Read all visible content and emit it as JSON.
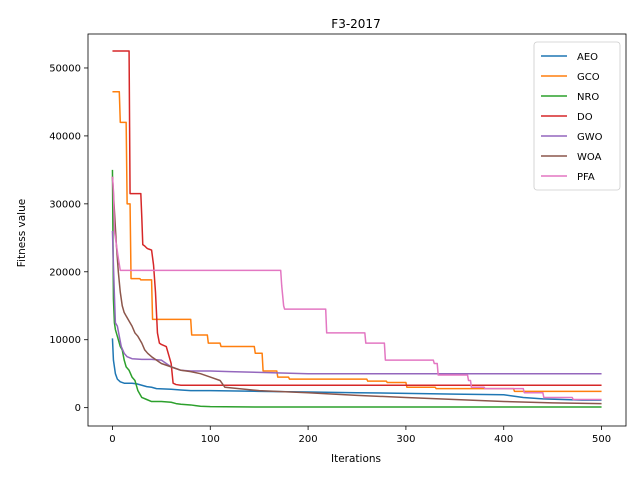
{
  "chart_data": {
    "type": "line",
    "title": "F3-2017",
    "xlabel": "Iterations",
    "ylabel": "Fitness value",
    "xlim": [
      -25,
      525
    ],
    "ylim": [
      -2700,
      55000
    ],
    "xticks": [
      0,
      100,
      200,
      300,
      400,
      500
    ],
    "yticks": [
      0,
      10000,
      20000,
      30000,
      40000,
      50000
    ],
    "grid": false,
    "legend": "top-right",
    "series": [
      {
        "name": "AEO",
        "color": "#1f77b4",
        "x": [
          0,
          1,
          2,
          3,
          5,
          8,
          12,
          20,
          25,
          30,
          35,
          40,
          45,
          60,
          70,
          80,
          100,
          150,
          200,
          250,
          300,
          350,
          400,
          410,
          420,
          440,
          460,
          480,
          500
        ],
        "y": [
          10200,
          7000,
          6000,
          5000,
          4200,
          3800,
          3600,
          3600,
          3500,
          3300,
          3100,
          3000,
          2800,
          2700,
          2600,
          2500,
          2500,
          2400,
          2300,
          2200,
          2100,
          2000,
          1900,
          1700,
          1500,
          1300,
          1200,
          1100,
          1100
        ]
      },
      {
        "name": "GCO",
        "color": "#ff7f0e",
        "x": [
          0,
          7,
          8,
          14,
          15,
          18,
          19,
          28,
          29,
          40,
          41,
          80,
          81,
          97,
          98,
          110,
          111,
          145,
          146,
          153,
          154,
          168,
          169,
          180,
          181,
          260,
          261,
          280,
          281,
          300,
          301,
          330,
          331,
          410,
          411,
          500
        ],
        "y": [
          46500,
          46500,
          42000,
          42000,
          30000,
          30000,
          19000,
          19000,
          18800,
          18800,
          13000,
          13000,
          10700,
          10700,
          9500,
          9500,
          9000,
          9000,
          8000,
          8000,
          5400,
          5400,
          4500,
          4500,
          4200,
          4200,
          3900,
          3900,
          3700,
          3700,
          3000,
          3000,
          2800,
          2800,
          2400,
          2400
        ]
      },
      {
        "name": "NRO",
        "color": "#2ca02c",
        "x": [
          0,
          1,
          2,
          3,
          5,
          8,
          10,
          12,
          14,
          17,
          20,
          23,
          26,
          30,
          35,
          40,
          50,
          60,
          65,
          70,
          80,
          85,
          90,
          100,
          150,
          200,
          300,
          400,
          500
        ],
        "y": [
          35000,
          16000,
          12500,
          11500,
          10500,
          9000,
          8500,
          7000,
          6000,
          5500,
          4500,
          4000,
          2500,
          1500,
          1200,
          900,
          900,
          800,
          600,
          500,
          400,
          300,
          200,
          150,
          100,
          100,
          100,
          100,
          100
        ]
      },
      {
        "name": "DO",
        "color": "#d62728",
        "x": [
          0,
          17,
          18,
          29,
          30,
          31,
          33,
          35,
          36,
          38,
          40,
          42,
          44,
          46,
          48,
          50,
          55,
          58,
          60,
          62,
          65,
          70,
          80,
          200,
          300,
          400,
          500
        ],
        "y": [
          52500,
          52500,
          31500,
          31500,
          28000,
          24000,
          23800,
          23500,
          23400,
          23300,
          23200,
          21000,
          17000,
          11000,
          9500,
          9300,
          9000,
          7500,
          6500,
          3600,
          3400,
          3300,
          3300,
          3300,
          3300,
          3300,
          3300
        ]
      },
      {
        "name": "GWO",
        "color": "#9467bd",
        "x": [
          0,
          1,
          2,
          3,
          5,
          7,
          9,
          12,
          15,
          20,
          30,
          40,
          50,
          60,
          70,
          80,
          100,
          120,
          150,
          200,
          300,
          400,
          500
        ],
        "y": [
          26000,
          21000,
          16500,
          12500,
          12000,
          10500,
          9000,
          8000,
          7500,
          7200,
          7100,
          7100,
          7000,
          6000,
          5500,
          5400,
          5400,
          5300,
          5200,
          5000,
          5000,
          5000,
          5000
        ]
      },
      {
        "name": "WOA",
        "color": "#8c564b",
        "x": [
          0,
          2,
          4,
          6,
          8,
          10,
          12,
          14,
          16,
          18,
          20,
          23,
          26,
          30,
          33,
          36,
          40,
          45,
          50,
          60,
          70,
          80,
          90,
          100,
          110,
          115,
          150,
          200,
          250,
          300,
          350,
          400,
          450,
          500
        ],
        "y": [
          34000,
          29000,
          24000,
          20000,
          17000,
          15000,
          14000,
          13500,
          13000,
          12500,
          12000,
          11000,
          10500,
          9500,
          8500,
          8000,
          7500,
          7000,
          6500,
          6000,
          5500,
          5300,
          5000,
          4500,
          4000,
          3000,
          2500,
          2200,
          1800,
          1500,
          1200,
          900,
          700,
          600
        ]
      },
      {
        "name": "PFA",
        "color": "#e377c2",
        "x": [
          0,
          1,
          2,
          4,
          6,
          8,
          10,
          172,
          173,
          175,
          176,
          218,
          219,
          258,
          259,
          278,
          279,
          328,
          329,
          332,
          333,
          363,
          364,
          366,
          367,
          380,
          381,
          420,
          421,
          440,
          441,
          470,
          471,
          500
        ],
        "y": [
          34000,
          32000,
          26000,
          24000,
          22000,
          20200,
          20200,
          20200,
          18000,
          15000,
          14500,
          14500,
          11000,
          11000,
          9500,
          9500,
          7000,
          7000,
          6500,
          6500,
          4800,
          4800,
          4000,
          4000,
          3000,
          3000,
          2800,
          2800,
          2200,
          2200,
          1500,
          1500,
          1200,
          1200
        ]
      }
    ]
  }
}
